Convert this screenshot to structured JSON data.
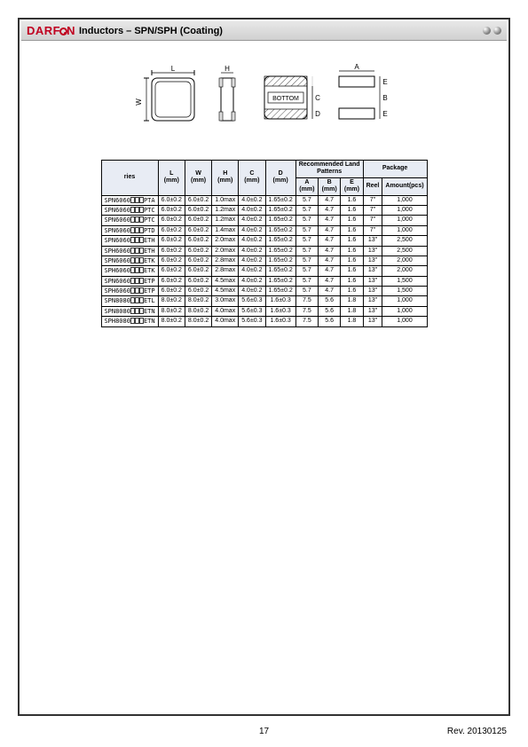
{
  "header": {
    "logo_text_pre": "DARF",
    "logo_text_post": "N",
    "title": "Inductors – SPN/SPH (Coating)"
  },
  "diagram": {
    "bottom_label": "BOTTOM",
    "dim_L": "L",
    "dim_W": "W",
    "dim_H": "H",
    "dim_C": "C",
    "dim_D": "D",
    "dim_A": "A",
    "dim_B": "B",
    "dim_E": "E"
  },
  "table": {
    "headers": {
      "series": "ries",
      "L": "L\n(mm)",
      "W": "W\n(mm)",
      "H": "H\n(mm)",
      "C": "C\n(mm)",
      "D": "D\n(mm)",
      "land_group": "Recommended Land\nPatterns",
      "A": "A\n(mm)",
      "B": "B\n(mm)",
      "E": "E\n(mm)",
      "pkg_group": "Package",
      "reel": "Reel",
      "amount": "Amount(pcs)"
    },
    "rows": [
      {
        "series_pre": "SPN6060",
        "series_suf": "PTA",
        "L": "6.0±0.2",
        "W": "6.0±0.2",
        "H": "1.0max",
        "C": "4.0±0.2",
        "D": "1.65±0.2",
        "A": "5.7",
        "B": "4.7",
        "E": "1.6",
        "reel": "7\"",
        "amount": "1,000"
      },
      {
        "series_pre": "SPN6060",
        "series_suf": "PTC",
        "L": "6.0±0.2",
        "W": "6.0±0.2",
        "H": "1.2max",
        "C": "4.0±0.2",
        "D": "1.65±0.2",
        "A": "5.7",
        "B": "4.7",
        "E": "1.6",
        "reel": "7\"",
        "amount": "1,000"
      },
      {
        "series_pre": "SPN6060",
        "series_suf": "PTC",
        "L": "6.0±0.2",
        "W": "6.0±0.2",
        "H": "1.2max",
        "C": "4.0±0.2",
        "D": "1.65±0.2",
        "A": "5.7",
        "B": "4.7",
        "E": "1.6",
        "reel": "7\"",
        "amount": "1,000"
      },
      {
        "series_pre": "SPN6060",
        "series_suf": "PTD",
        "L": "6.0±0.2",
        "W": "6.0±0.2",
        "H": "1.4max",
        "C": "4.0±0.2",
        "D": "1.65±0.2",
        "A": "5.7",
        "B": "4.7",
        "E": "1.6",
        "reel": "7\"",
        "amount": "1,000"
      },
      {
        "series_pre": "SPN6060",
        "series_suf": "ETH",
        "L": "6.0±0.2",
        "W": "6.0±0.2",
        "H": "2.0max",
        "C": "4.0±0.2",
        "D": "1.65±0.2",
        "A": "5.7",
        "B": "4.7",
        "E": "1.6",
        "reel": "13\"",
        "amount": "2,500"
      },
      {
        "series_pre": "SPH6060",
        "series_suf": "ETH",
        "L": "6.0±0.2",
        "W": "6.0±0.2",
        "H": "2.0max",
        "C": "4.0±0.2",
        "D": "1.65±0.2",
        "A": "5.7",
        "B": "4.7",
        "E": "1.6",
        "reel": "13\"",
        "amount": "2,500"
      },
      {
        "series_pre": "SPN6060",
        "series_suf": "ETK",
        "L": "6.0±0.2",
        "W": "6.0±0.2",
        "H": "2.8max",
        "C": "4.0±0.2",
        "D": "1.65±0.2",
        "A": "5.7",
        "B": "4.7",
        "E": "1.6",
        "reel": "13\"",
        "amount": "2,000"
      },
      {
        "series_pre": "SPH6060",
        "series_suf": "ETK",
        "L": "6.0±0.2",
        "W": "6.0±0.2",
        "H": "2.8max",
        "C": "4.0±0.2",
        "D": "1.65±0.2",
        "A": "5.7",
        "B": "4.7",
        "E": "1.6",
        "reel": "13\"",
        "amount": "2,000"
      },
      {
        "series_pre": "SPN6060",
        "series_suf": "ETP",
        "L": "6.0±0.2",
        "W": "6.0±0.2",
        "H": "4.5max",
        "C": "4.0±0.2",
        "D": "1.65±0.2",
        "A": "5.7",
        "B": "4.7",
        "E": "1.6",
        "reel": "13\"",
        "amount": "1,500"
      },
      {
        "series_pre": "SPH6060",
        "series_suf": "ETP",
        "L": "6.0±0.2",
        "W": "6.0±0.2",
        "H": "4.5max",
        "C": "4.0±0.2",
        "D": "1.65±0.2",
        "A": "5.7",
        "B": "4.7",
        "E": "1.6",
        "reel": "13\"",
        "amount": "1,500"
      },
      {
        "series_pre": "SPN8080",
        "series_suf": "ETL",
        "L": "8.0±0.2",
        "W": "8.0±0.2",
        "H": "3.0max",
        "C": "5.6±0.3",
        "D": "1.6±0.3",
        "A": "7.5",
        "B": "5.6",
        "E": "1.8",
        "reel": "13\"",
        "amount": "1,000"
      },
      {
        "series_pre": "SPN8080",
        "series_suf": "ETN",
        "L": "8.0±0.2",
        "W": "8.0±0.2",
        "H": "4.0max",
        "C": "5.6±0.3",
        "D": "1.6±0.3",
        "A": "7.5",
        "B": "5.6",
        "E": "1.8",
        "reel": "13\"",
        "amount": "1,000"
      },
      {
        "series_pre": "SPH8080",
        "series_suf": "ETN",
        "L": "8.0±0.2",
        "W": "8.0±0.2",
        "H": "4.0max",
        "C": "5.6±0.3",
        "D": "1.6±0.3",
        "A": "7.5",
        "B": "5.6",
        "E": "1.8",
        "reel": "13\"",
        "amount": "1,000"
      }
    ]
  },
  "footer": {
    "page": "17",
    "rev": "Rev. 20130125"
  }
}
